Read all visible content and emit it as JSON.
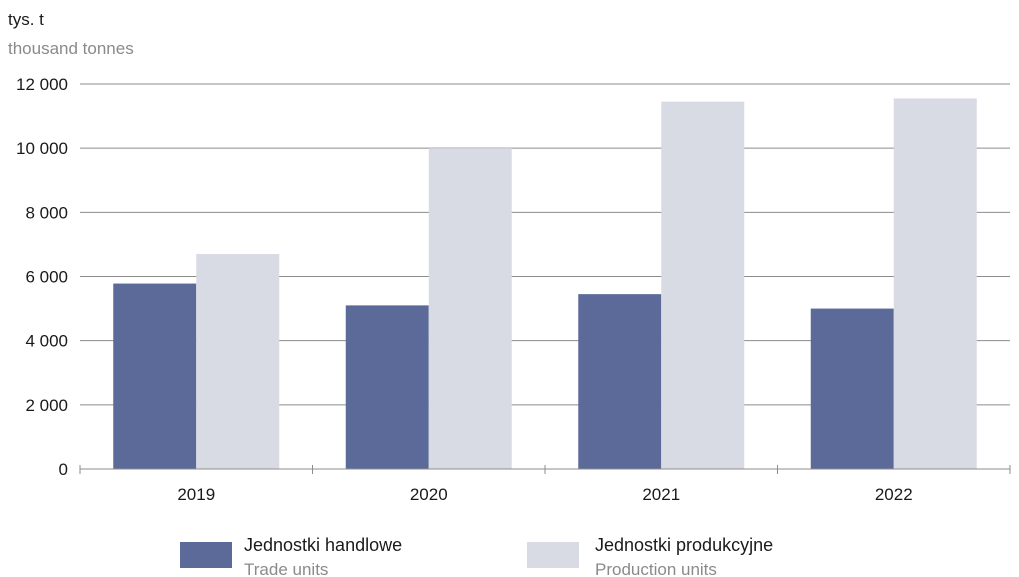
{
  "chart_data": {
    "type": "bar",
    "unit_label": "tys. t",
    "unit_label_en": "thousand tonnes",
    "categories": [
      "2019",
      "2020",
      "2021",
      "2022"
    ],
    "series": [
      {
        "name": "Jednostki handlowe",
        "name_en": "Trade units",
        "color": "#5b6a98",
        "values": [
          5780,
          5100,
          5450,
          5000
        ]
      },
      {
        "name": "Jednostki produkcyjne",
        "name_en": "Production units",
        "color": "#d8dbe4",
        "values": [
          6700,
          10000,
          11450,
          11550
        ]
      }
    ],
    "y_ticks": [
      "0",
      "2 000",
      "4 000",
      "6 000",
      "8 000",
      "10 000",
      "12 000"
    ],
    "ylim": [
      0,
      12000
    ],
    "grid": true,
    "legend_position": "bottom"
  }
}
